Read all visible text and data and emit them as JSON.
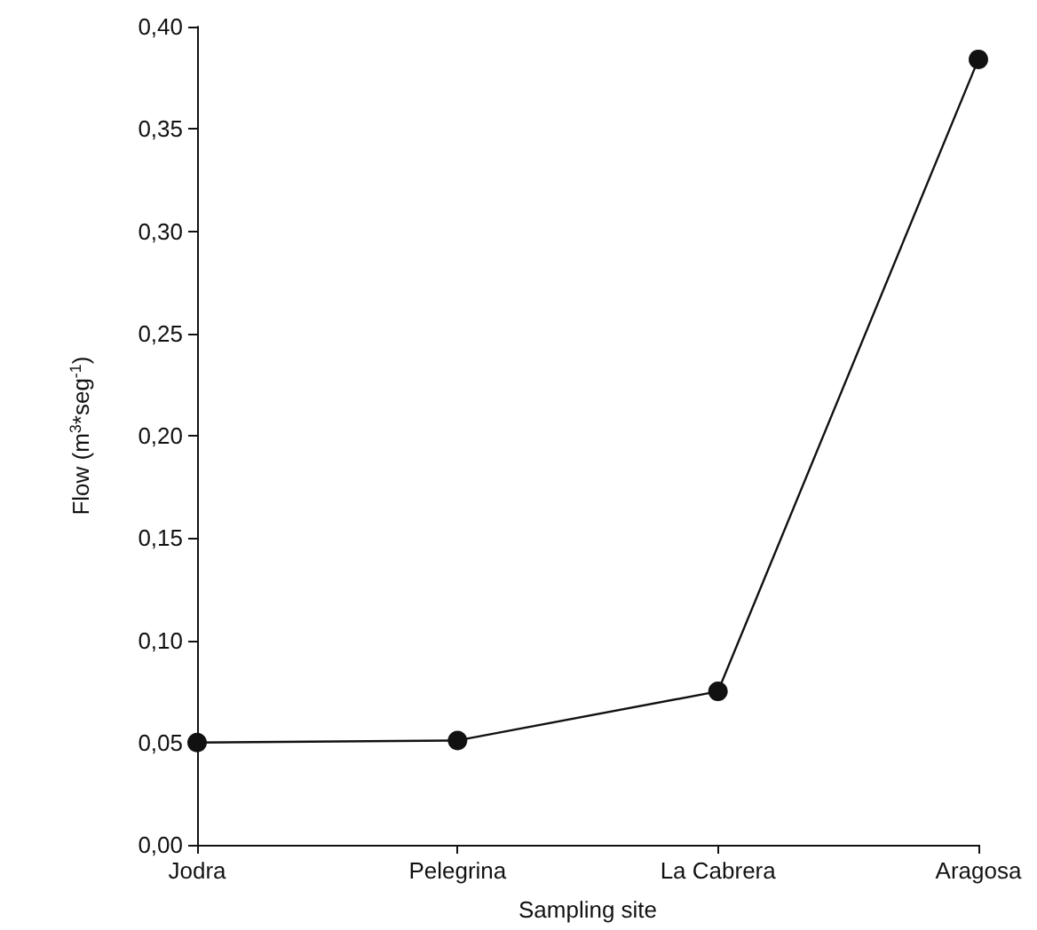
{
  "chart_data": {
    "type": "line",
    "xlabel": "Sampling site",
    "ylabel": "Flow (m$^{3}$*seg$^{-1}$)",
    "categories": [
      "Jodra",
      "Pelegrina",
      "La Cabrera",
      "Aragosa"
    ],
    "series": [
      {
        "color": "#111111",
        "values": [
          0.05,
          0.051,
          0.075,
          0.384
        ]
      }
    ],
    "ylim": [
      0,
      0.4
    ],
    "yticks": [
      {
        "value": 0,
        "label": "0,00"
      },
      {
        "value": 0.05,
        "label": "0,05"
      },
      {
        "value": 0.1,
        "label": "0,10"
      },
      {
        "value": 0.15,
        "label": "0,15"
      },
      {
        "value": 0.2,
        "label": "0,20"
      },
      {
        "value": 0.25,
        "label": "0,25"
      },
      {
        "value": 0.3,
        "label": "0,30"
      },
      {
        "value": 0.35,
        "label": "0,35"
      },
      {
        "value": 0.4,
        "label": "0,40"
      }
    ],
    "grid": false,
    "marker": "circle",
    "line_style": "solid"
  }
}
